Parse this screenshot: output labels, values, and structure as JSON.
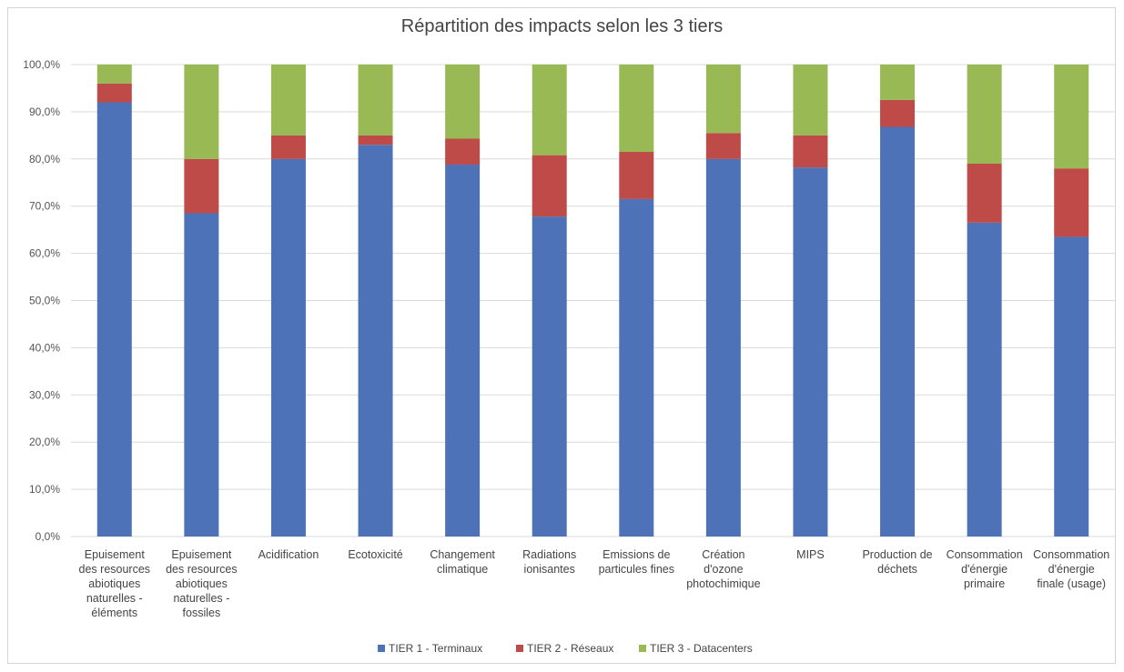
{
  "chart_data": {
    "type": "bar",
    "stacked": true,
    "title": "Répartition des impacts selon les 3 tiers",
    "ylim": [
      0,
      100
    ],
    "yticks": [
      "0,0%",
      "10,0%",
      "20,0%",
      "30,0%",
      "40,0%",
      "50,0%",
      "60,0%",
      "70,0%",
      "80,0%",
      "90,0%",
      "100,0%"
    ],
    "grid": true,
    "legend_position": "bottom",
    "categories": [
      [
        "Epuisement",
        "des resources",
        "abiotiques",
        "naturelles -",
        "éléments"
      ],
      [
        "Epuisement",
        "des resources",
        "abiotiques",
        "naturelles -",
        "fossiles"
      ],
      [
        "Acidification"
      ],
      [
        "Ecotoxicité"
      ],
      [
        "Changement",
        "climatique"
      ],
      [
        "Radiations",
        "ionisantes"
      ],
      [
        "Emissions de",
        "particules fines"
      ],
      [
        "Création",
        "d'ozone",
        "photochimique"
      ],
      [
        "MIPS"
      ],
      [
        "Production de",
        "déchets"
      ],
      [
        "Consommation",
        "d'énergie",
        "primaire"
      ],
      [
        "Consommation",
        "d'énergie",
        "finale (usage)"
      ]
    ],
    "series": [
      {
        "name": "TIER 1 - Terminaux",
        "color": "#4e72b8",
        "values": [
          92.0,
          68.5,
          80.0,
          83.0,
          78.8,
          67.8,
          71.5,
          80.0,
          78.2,
          86.8,
          66.5,
          63.5
        ]
      },
      {
        "name": "TIER 2 - Réseaux",
        "color": "#be4b48",
        "values": [
          4.0,
          11.5,
          5.0,
          2.0,
          5.5,
          13.0,
          10.0,
          5.5,
          6.8,
          5.7,
          12.5,
          14.5
        ]
      },
      {
        "name": "TIER 3 - Datacenters",
        "color": "#98b954",
        "values": [
          4.0,
          20.0,
          15.0,
          15.0,
          15.7,
          19.2,
          18.5,
          14.5,
          15.0,
          7.5,
          21.0,
          22.0
        ]
      }
    ]
  }
}
